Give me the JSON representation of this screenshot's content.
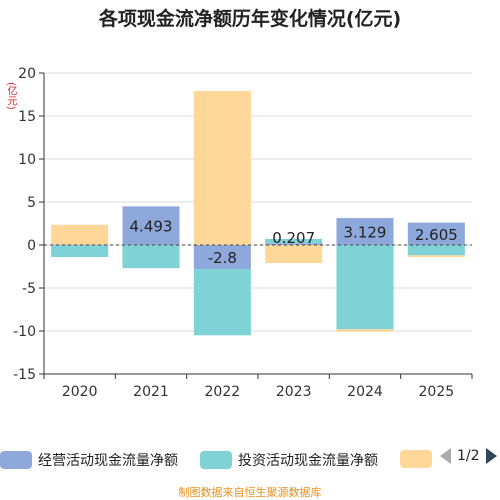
{
  "title": "各项现金流净额历年变化情况(亿元)",
  "unit_label": "(亿元)",
  "source": "制图数据来自恒生聚源数据库",
  "legend": {
    "items": [
      {
        "label": "经营活动现金流量净额",
        "color": "#8fa8dc"
      },
      {
        "label": "投资活动现金流量净额",
        "color": "#7fd3d6"
      },
      {
        "label": "",
        "color": "#ffd899"
      }
    ],
    "page": "1/2"
  },
  "chart_data": {
    "type": "bar",
    "stacked": true,
    "categories": [
      "2020",
      "2021",
      "2022",
      "2023",
      "2024",
      "2025"
    ],
    "ylim": [
      -15,
      20
    ],
    "yticks": [
      -15,
      -10,
      -5,
      0,
      5,
      10,
      15,
      20
    ],
    "grid": true,
    "legend_position": "bottom",
    "series": [
      {
        "name": "经营活动现金流量净额",
        "color": "#8fa8dc",
        "values": [
          0.05,
          4.493,
          -2.8,
          0.207,
          3.129,
          2.605
        ],
        "labels": [
          "",
          "4.493",
          "-2.8",
          "0.207",
          "3.129",
          "2.605"
        ]
      },
      {
        "name": "投资活动现金流量净额",
        "color": "#7fd3d6",
        "values": [
          -1.4,
          -2.7,
          -7.7,
          0.5,
          -9.8,
          -1.2
        ]
      },
      {
        "color": "#ffd899",
        "values": [
          2.3,
          0.0,
          17.9,
          -2.1,
          -0.3,
          -0.2
        ]
      }
    ]
  }
}
